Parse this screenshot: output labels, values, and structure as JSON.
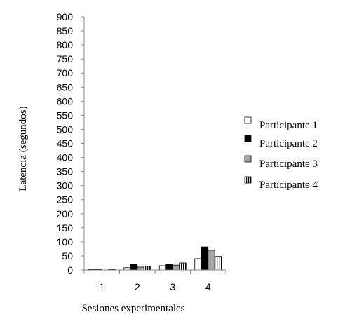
{
  "chart_data": {
    "type": "bar",
    "title": "",
    "xlabel": "Sesiones experimentales",
    "ylabel": "Latencia (segundos)",
    "categories": [
      "1",
      "2",
      "3",
      "4"
    ],
    "ylim": [
      0,
      900
    ],
    "yticks": [
      "0",
      "50",
      "100",
      "150",
      "200",
      "250",
      "300",
      "350",
      "400",
      "450",
      "500",
      "550",
      "600",
      "650",
      "700",
      "750",
      "800",
      "850",
      "900"
    ],
    "grid": false,
    "legend_position": "right",
    "series": [
      {
        "name": "Participante 1",
        "values": [
          2,
          8,
          15,
          40
        ],
        "style": "white",
        "color": "#ffffff"
      },
      {
        "name": "Participante 2",
        "values": [
          2,
          20,
          20,
          82
        ],
        "style": "black",
        "color": "#000000"
      },
      {
        "name": "Participante 3",
        "values": [
          0,
          10,
          17,
          70
        ],
        "style": "gray",
        "color": "#a6a6a6"
      },
      {
        "name": "Participante 4",
        "values": [
          2,
          13,
          25,
          48
        ],
        "style": "striped",
        "color": "#ffffff"
      }
    ]
  }
}
